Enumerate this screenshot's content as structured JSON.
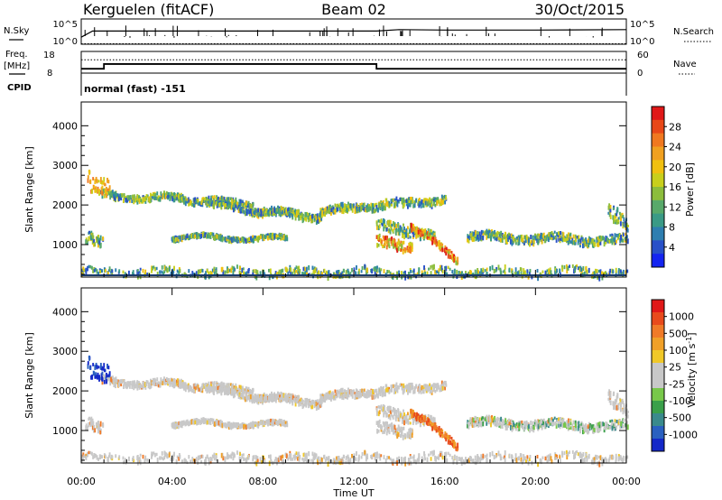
{
  "header": {
    "station": "Kerguelen (fitACF)",
    "beam": "Beam 02",
    "date": "30/Oct/2015"
  },
  "panels": {
    "nsky": {
      "label": "N.Sky",
      "right_label": "N.Search",
      "tick_top": "10^5",
      "tick_bottom": "10^0"
    },
    "freq": {
      "label_line1": "Freq.",
      "label_line2": "[MHz]",
      "right_label": "Nave",
      "left_ticks": [
        "18",
        "8"
      ],
      "right_ticks": [
        "60",
        "0"
      ]
    },
    "cpid": {
      "label": "CPID",
      "text": "normal (fast) -151"
    }
  },
  "chart_data": [
    {
      "type": "line",
      "title": "N.Sky / N.Search",
      "xlabel": "Time UT",
      "ylim_log10": [
        0,
        5
      ],
      "x": [
        "00:00",
        "00:30",
        "13:00",
        "14:00",
        "16:00",
        "20:00",
        "24:00"
      ],
      "series": [
        {
          "name": "N.Sky",
          "values_log10": [
            1.4,
            2.6,
            2.6,
            2.9,
            2.8,
            2.8,
            2.9
          ]
        },
        {
          "name": "N.Search",
          "values_log10": [
            0.0,
            0.0,
            0.0,
            0.0,
            0.0,
            0.0,
            0.0
          ]
        }
      ]
    },
    {
      "type": "line",
      "title": "Freq. / Nave",
      "ylim_left": [
        8,
        18
      ],
      "ylim_right": [
        0,
        60
      ],
      "x": [
        "00:00",
        "01:00",
        "13:00",
        "24:00"
      ],
      "series": [
        {
          "name": "Freq. [MHz]",
          "values": [
            10,
            12.2,
            10,
            10
          ]
        },
        {
          "name": "Nave",
          "values": [
            37,
            37,
            37,
            37
          ]
        }
      ]
    },
    {
      "type": "heatmap",
      "title": "Power",
      "xlabel": "Time UT",
      "ylabel": "Slant Range [km]",
      "x_ticks": [
        "00:00",
        "04:00",
        "08:00",
        "12:00",
        "16:00",
        "20:00",
        "00:00"
      ],
      "y_ticks": [
        "1000",
        "2000",
        "3000",
        "4000"
      ],
      "ylim": [
        180,
        4600
      ],
      "colorbar": {
        "label": "Power [dB]",
        "ticks": [
          "4",
          "8",
          "12",
          "16",
          "20",
          "24",
          "28"
        ],
        "colors": [
          "#1424f0",
          "#2850c8",
          "#2e7eb0",
          "#3a9a86",
          "#58a96a",
          "#8cbd3c",
          "#c8cf1c",
          "#f0c010",
          "#f0a020",
          "#f07820",
          "#e84818",
          "#e01818"
        ]
      }
    },
    {
      "type": "heatmap",
      "title": "Velocity",
      "xlabel": "Time UT",
      "ylabel": "Slant Range [km]",
      "x_ticks": [
        "00:00",
        "04:00",
        "08:00",
        "12:00",
        "16:00",
        "20:00",
        "00:00"
      ],
      "y_ticks": [
        "1000",
        "2000",
        "3000",
        "4000"
      ],
      "ylim": [
        180,
        4600
      ],
      "colorbar": {
        "label": "Velocity [m s^-1]",
        "ticks": [
          "1000",
          "500",
          "100",
          "25",
          "-25",
          "-100",
          "-500",
          "-1000"
        ],
        "colors": [
          "#1428c8",
          "#2a60c0",
          "#3a8a8c",
          "#3aa04a",
          "#78c84a",
          "#c8c8c8",
          "#c8c8c8",
          "#f0c828",
          "#f0a028",
          "#f07a28",
          "#e84a1c",
          "#e01818"
        ]
      }
    }
  ],
  "axis": {
    "xlabel": "Time UT"
  }
}
